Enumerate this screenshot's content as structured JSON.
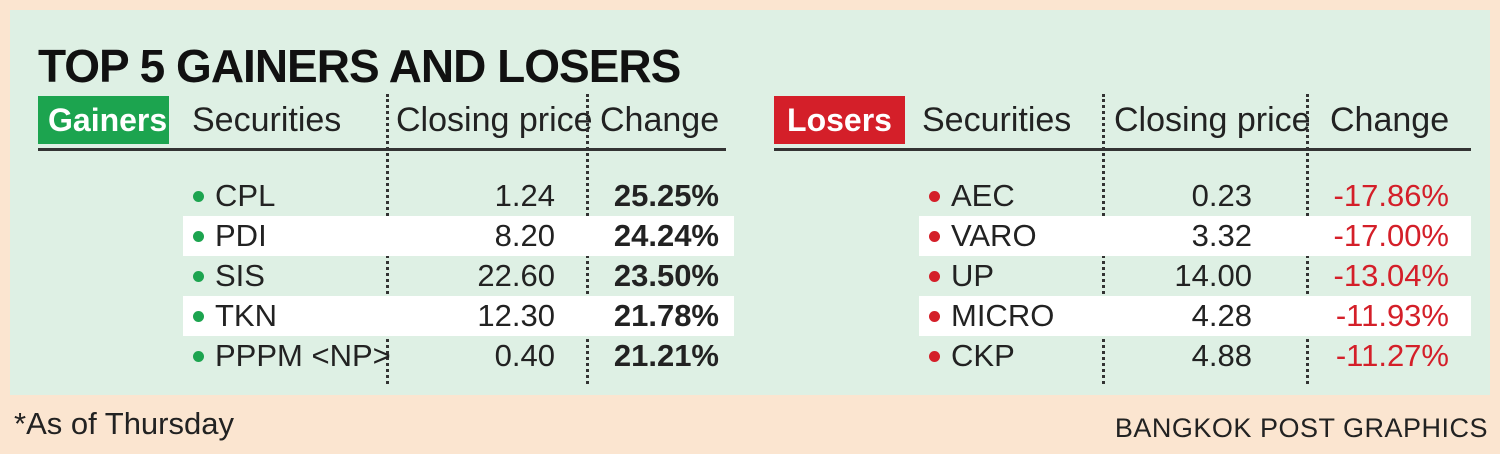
{
  "title": "TOP 5 GAINERS AND LOSERS",
  "footnote": "*As of Thursday",
  "credit": "BANGKOK POST GRAPHICS",
  "colors": {
    "gainer": "#1ca44f",
    "loser": "#d41f29",
    "panel": "#def0e4",
    "background": "#fbe5d0"
  },
  "chart_data": [
    {
      "type": "table",
      "label": "Gainers",
      "columns": [
        "Securities",
        "Closing price",
        "Change"
      ],
      "rows": [
        {
          "security": "CPL",
          "price": "1.24",
          "change": "25.25%"
        },
        {
          "security": "PDI",
          "price": "8.20",
          "change": "24.24%"
        },
        {
          "security": "SIS",
          "price": "22.60",
          "change": "23.50%"
        },
        {
          "security": "TKN",
          "price": "12.30",
          "change": "21.78%"
        },
        {
          "security": "PPPM <NP>",
          "price": "0.40",
          "change": "21.21%"
        }
      ]
    },
    {
      "type": "table",
      "label": "Losers",
      "columns": [
        "Securities",
        "Closing price",
        "Change"
      ],
      "rows": [
        {
          "security": "AEC",
          "price": "0.23",
          "change": "-17.86%"
        },
        {
          "security": "VARO",
          "price": "3.32",
          "change": "-17.00%"
        },
        {
          "security": "UP",
          "price": "14.00",
          "change": "-13.04%"
        },
        {
          "security": "MICRO",
          "price": "4.28",
          "change": "-11.93%"
        },
        {
          "security": "CKP",
          "price": "4.88",
          "change": "-11.27%"
        }
      ]
    }
  ]
}
